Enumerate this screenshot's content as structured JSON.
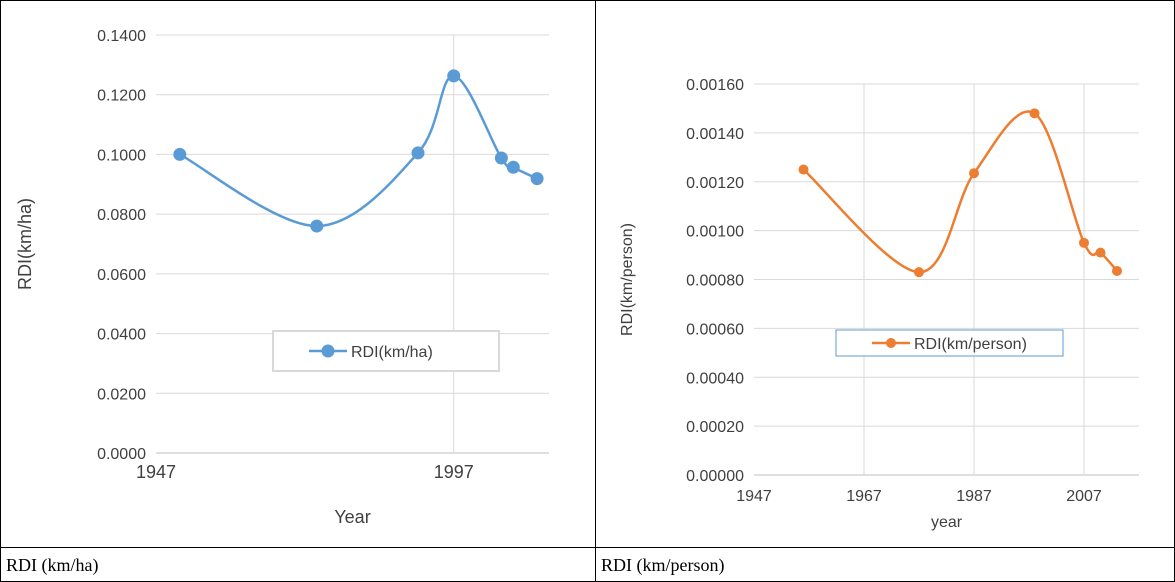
{
  "chart_data": [
    {
      "type": "line",
      "smooth": true,
      "markers": true,
      "xlabel": "Year",
      "ylabel": "RDI(km/ha)",
      "xlim": [
        1947,
        2013
      ],
      "ylim": [
        0,
        0.14
      ],
      "xticks": [
        "1947",
        "1997"
      ],
      "yticks": [
        "0.0000",
        "0.0200",
        "0.0400",
        "0.0600",
        "0.0800",
        "0.1000",
        "0.1200",
        "0.1400"
      ],
      "grid": true,
      "legend_position": "center",
      "series": [
        {
          "name": "RDI(km/ha)",
          "color": "#5B9BD5",
          "x": [
            1951,
            1974,
            1991,
            1997,
            2005,
            2007,
            2011
          ],
          "y": [
            0.1,
            0.076,
            0.1005,
            0.1263,
            0.0988,
            0.0957,
            0.0919
          ]
        }
      ]
    },
    {
      "type": "line",
      "smooth": true,
      "markers": true,
      "xlabel": "year",
      "ylabel": "RDI(km/person)",
      "xlim": [
        1947,
        2017
      ],
      "ylim": [
        0,
        0.0016
      ],
      "xticks": [
        "1947",
        "1967",
        "1987",
        "2007"
      ],
      "yticks": [
        "0.00000",
        "0.00020",
        "0.00040",
        "0.00060",
        "0.00080",
        "0.00100",
        "0.00120",
        "0.00140",
        "0.00160"
      ],
      "grid": true,
      "legend_position": "center",
      "series": [
        {
          "name": "RDI(km/person)",
          "color": "#ED7D31",
          "x": [
            1956,
            1977,
            1987,
            1998,
            2007,
            2010,
            2013
          ],
          "y": [
            0.00125,
            0.00083,
            0.001235,
            0.00148,
            0.00095,
            0.00091,
            0.000835
          ]
        }
      ]
    }
  ],
  "captions": [
    "RDI (km/ha)",
    "RDI (km/person)"
  ]
}
